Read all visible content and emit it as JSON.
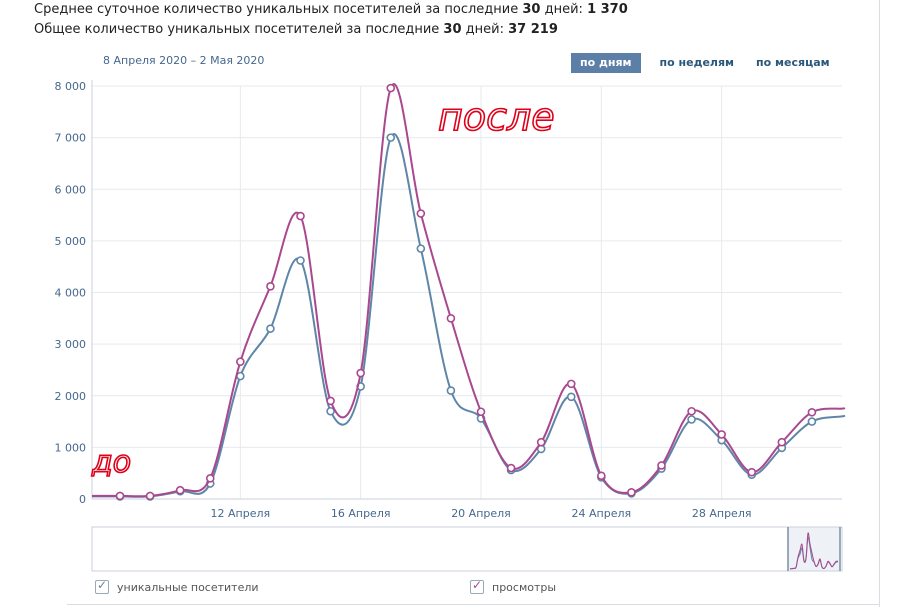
{
  "stats": {
    "avg_text": "Среднее суточное количество уникальных посетителей за последние ",
    "avg_days": "30",
    "avg_mid": " дней: ",
    "avg_value": "1 370",
    "total_text": "Общее количество уникальных посетителей за последние ",
    "total_days": "30",
    "total_mid": " дней: ",
    "total_value": "37 219"
  },
  "date_range": "8 Апреля 2020 – 2 Мая 2020",
  "tabs": [
    {
      "label": "по дням",
      "active": true
    },
    {
      "label": "по неделям",
      "active": false
    },
    {
      "label": "по месяцам",
      "active": false
    }
  ],
  "annotations": {
    "before": "до",
    "after": "после",
    "color": "#e0001a"
  },
  "legend": {
    "unique": {
      "label": "уникальные посетители",
      "color": "#5f86a8"
    },
    "views": {
      "label": "просмотры",
      "color": "#a9488f"
    }
  },
  "chart_data": {
    "type": "line",
    "x": [
      "8 Апреля",
      "9 Апреля",
      "10 Апреля",
      "11 Апреля",
      "12 Апреля",
      "13 Апреля",
      "14 Апреля",
      "15 Апреля",
      "16 Апреля",
      "17 Апреля",
      "18 Апреля",
      "19 Апреля",
      "20 Апреля",
      "21 Апреля",
      "22 Апреля",
      "23 Апреля",
      "24 Апреля",
      "25 Апреля",
      "26 Апреля",
      "27 Апреля",
      "28 Апреля",
      "29 Апреля",
      "30 Апреля",
      "1 Мая",
      "2 Мая"
    ],
    "xticks": [
      "12 Апреля",
      "16 Апреля",
      "20 Апреля",
      "24 Апреля",
      "28 Апреля"
    ],
    "xtick_index": [
      4,
      8,
      12,
      16,
      20
    ],
    "yticks": [
      "0",
      "1 000",
      "2 000",
      "3 000",
      "4 000",
      "5 000",
      "6 000",
      "7 000",
      "8 000"
    ],
    "ylim": [
      0,
      8000
    ],
    "grid": true,
    "series": [
      {
        "name": "уникальные посетители",
        "color": "#5f86a8",
        "values": [
          50,
          50,
          150,
          300,
          2380,
          3300,
          4620,
          1700,
          2180,
          7000,
          4850,
          2100,
          1560,
          560,
          970,
          1980,
          420,
          110,
          590,
          1540,
          1140,
          470,
          990,
          1500,
          1600
        ]
      },
      {
        "name": "просмотры",
        "color": "#a9488f",
        "values": [
          60,
          60,
          170,
          400,
          2660,
          4120,
          5480,
          1900,
          2440,
          7960,
          5530,
          3500,
          1690,
          600,
          1100,
          2230,
          450,
          130,
          650,
          1700,
          1250,
          520,
          1100,
          1680,
          1750
        ]
      }
    ]
  }
}
